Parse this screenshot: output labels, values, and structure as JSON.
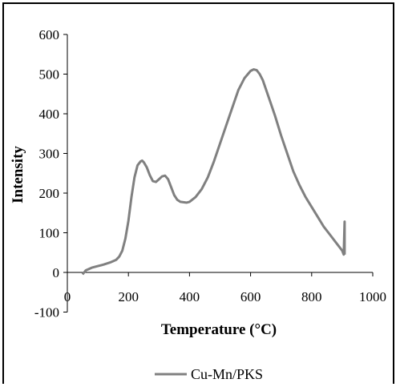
{
  "chart_data": {
    "type": "line",
    "title": "",
    "xlabel": "Temperature (°C)",
    "ylabel": "Intensity",
    "xlim": [
      0,
      1000
    ],
    "ylim": [
      -100,
      600
    ],
    "xticks": [
      0,
      200,
      400,
      600,
      800,
      1000
    ],
    "yticks": [
      -100,
      0,
      100,
      200,
      300,
      400,
      500,
      600
    ],
    "xtick_labels": [
      "0",
      "200",
      "400",
      "600",
      "800",
      "1000"
    ],
    "ytick_labels": [
      "-100",
      "0",
      "100",
      "200",
      "300",
      "400",
      "500",
      "600"
    ],
    "grid": false,
    "legend_position": "bottom",
    "series": [
      {
        "name": "Cu-Mn/PKS",
        "color": "#808080",
        "x": [
          50,
          60,
          80,
          100,
          120,
          140,
          160,
          170,
          180,
          190,
          200,
          210,
          220,
          230,
          240,
          245,
          250,
          260,
          270,
          280,
          290,
          300,
          310,
          320,
          330,
          340,
          350,
          360,
          370,
          380,
          390,
          400,
          420,
          440,
          460,
          480,
          500,
          520,
          540,
          560,
          580,
          600,
          610,
          620,
          630,
          640,
          660,
          680,
          700,
          720,
          740,
          760,
          780,
          800,
          820,
          840,
          860,
          880,
          900,
          905,
          908,
          908
        ],
        "y": [
          -5,
          5,
          12,
          16,
          20,
          25,
          32,
          40,
          55,
          85,
          130,
          190,
          240,
          270,
          280,
          282,
          278,
          265,
          245,
          230,
          228,
          235,
          242,
          244,
          235,
          215,
          195,
          183,
          178,
          177,
          176,
          178,
          190,
          210,
          240,
          280,
          325,
          370,
          415,
          460,
          490,
          508,
          512,
          510,
          500,
          485,
          440,
          395,
          345,
          300,
          255,
          220,
          190,
          165,
          140,
          115,
          95,
          75,
          55,
          45,
          128,
          45
        ]
      }
    ]
  }
}
